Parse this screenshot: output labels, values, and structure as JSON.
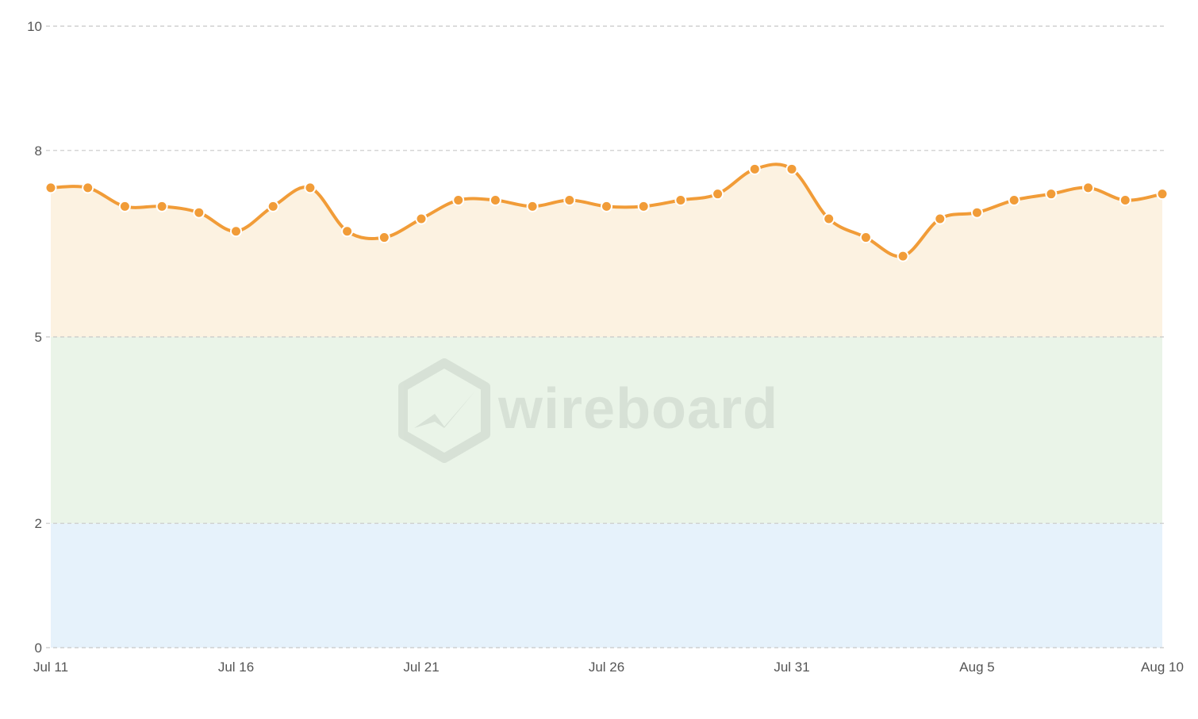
{
  "chart_data": {
    "type": "line",
    "title": "",
    "xlabel": "",
    "ylabel": "",
    "ylim": [
      0,
      10
    ],
    "yticks": [
      "0",
      "2",
      "5",
      "8",
      "10"
    ],
    "xtick_labels": [
      "Jul 11",
      "Jul 16",
      "Jul 21",
      "Jul 26",
      "Jul 31",
      "Aug 5",
      "Aug 10"
    ],
    "x": [
      "Jul 11",
      "Jul 12",
      "Jul 13",
      "Jul 14",
      "Jul 15",
      "Jul 16",
      "Jul 17",
      "Jul 18",
      "Jul 19",
      "Jul 20",
      "Jul 21",
      "Jul 22",
      "Jul 23",
      "Jul 24",
      "Jul 25",
      "Jul 26",
      "Jul 27",
      "Jul 28",
      "Jul 29",
      "Jul 30",
      "Jul 31",
      "Aug 1",
      "Aug 2",
      "Aug 3",
      "Aug 4",
      "Aug 5",
      "Aug 6",
      "Aug 7",
      "Aug 8",
      "Aug 9",
      "Aug 10"
    ],
    "values": [
      7.4,
      7.4,
      7.1,
      7.1,
      7.0,
      6.7,
      7.1,
      7.4,
      6.7,
      6.6,
      6.9,
      7.2,
      7.2,
      7.1,
      7.2,
      7.1,
      7.1,
      7.2,
      7.3,
      7.7,
      7.7,
      6.9,
      6.6,
      6.3,
      6.9,
      7.0,
      7.2,
      7.3,
      7.4,
      7.2,
      7.3
    ],
    "bands": [
      {
        "from": 0,
        "to": 2,
        "color": "#e6f2fb"
      },
      {
        "from": 2,
        "to": 5,
        "color": "#eaf4e8"
      },
      {
        "from": 5,
        "to": 10,
        "color": "#fcf2e1"
      }
    ],
    "line_color": "#f19c38",
    "grid": true,
    "watermark": "wireboard"
  }
}
